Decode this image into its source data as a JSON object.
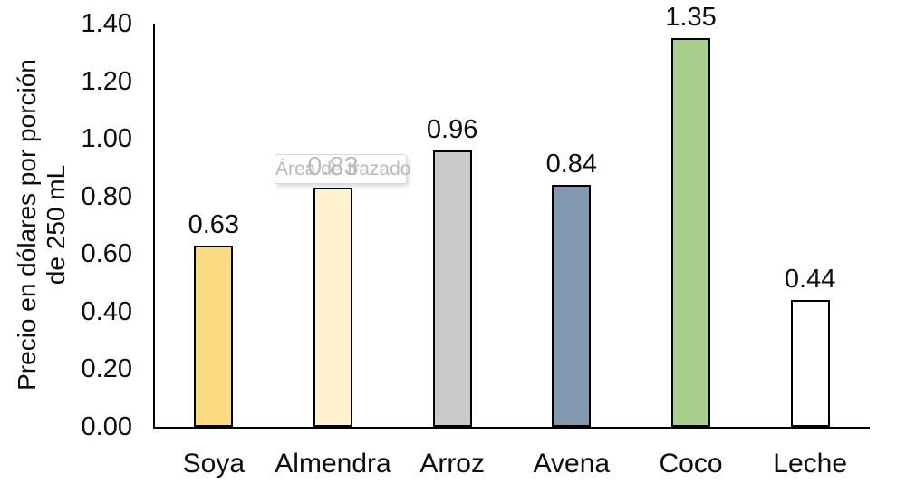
{
  "chart_data": {
    "type": "bar",
    "title": "",
    "xlabel": "",
    "ylabel_line1": "Precio en dólares por porción",
    "ylabel_line2": "de 250 mL",
    "categories": [
      "Soya",
      "Almendra",
      "Arroz",
      "Avena",
      "Coco",
      "Leche"
    ],
    "values": [
      0.63,
      0.83,
      0.96,
      0.84,
      1.35,
      0.44
    ],
    "data_labels": [
      "0.63",
      "0.83",
      "0.96",
      "0.84",
      "1.35",
      "0.44"
    ],
    "bar_colors": [
      "#FBDC84",
      "#FFF2CC",
      "#C9C9C9",
      "#8498B0",
      "#A8CF8D",
      "#FFFFFF"
    ],
    "bar_border_color": "#000000",
    "yticks": [
      "1.40",
      "1.20",
      "1.00",
      "0.80",
      "0.60",
      "0.40",
      "0.20",
      "0.00"
    ],
    "ylim": [
      0,
      1.4
    ],
    "ytick_step": 0.2,
    "grid": false,
    "legend": "none"
  },
  "tooltip": {
    "text": "Área de trazado"
  },
  "colors": {
    "background": "#FFFFFF",
    "axis_line": "#000000",
    "text": "#0D0D0D",
    "tooltip_text": "#B9B9B9"
  }
}
